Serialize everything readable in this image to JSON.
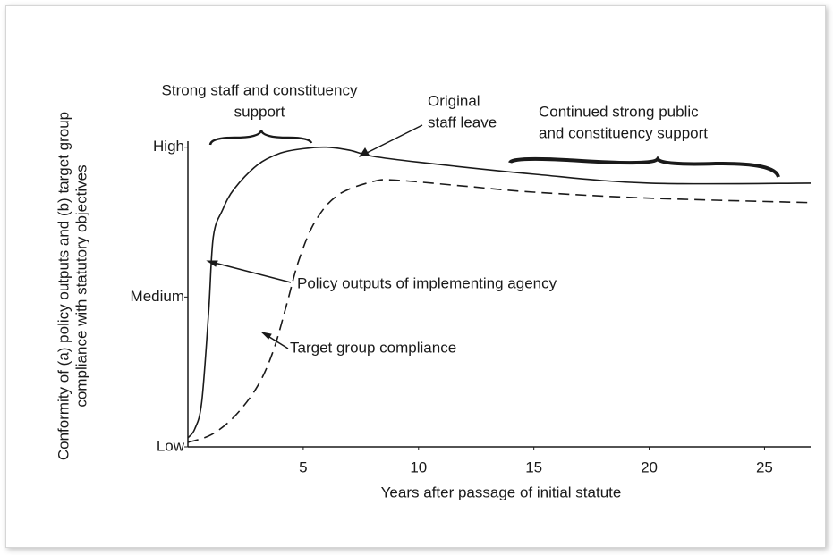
{
  "chart_data": {
    "type": "line",
    "xlabel": "Years after passage of initial statute",
    "ylabel": [
      "Conformity of  (a) policy outputs and (b) target group",
      "compliance with  statutory objectives"
    ],
    "xlim": [
      0,
      27
    ],
    "xticks": [
      5,
      10,
      15,
      20,
      25
    ],
    "ylim": [
      0,
      102
    ],
    "yticks": [
      {
        "value": 0,
        "label": "Low"
      },
      {
        "value": 50,
        "label": "Medium"
      },
      {
        "value": 100,
        "label": "High"
      }
    ],
    "series": [
      {
        "name": "Policy outputs of implementing agency",
        "color": "#1a1a1a",
        "dash": false,
        "x": [
          0,
          0.3,
          0.6,
          0.9,
          1.1,
          1.5,
          2,
          3,
          4,
          5,
          6,
          7,
          8,
          10,
          15,
          20,
          27
        ],
        "values": [
          3,
          6,
          15,
          45,
          70,
          79,
          86,
          94,
          98,
          99.5,
          100,
          99,
          97,
          95,
          91,
          88,
          88
        ]
      },
      {
        "name": "Target group compliance",
        "color": "#1a1a1a",
        "dash": true,
        "x": [
          0,
          1,
          2,
          3,
          3.7,
          4.3,
          4.8,
          5.5,
          6.5,
          8,
          9,
          12,
          15,
          20,
          27
        ],
        "values": [
          1.5,
          4,
          10,
          20,
          32,
          48,
          62,
          75,
          84,
          88.5,
          89,
          87,
          85,
          83,
          81.5
        ]
      }
    ],
    "annotations": [
      [
        "Strong staff  and constituency",
        "support"
      ],
      [
        "Original",
        "staff leave"
      ],
      [
        "Continued strong public",
        "and constituency support"
      ]
    ]
  }
}
